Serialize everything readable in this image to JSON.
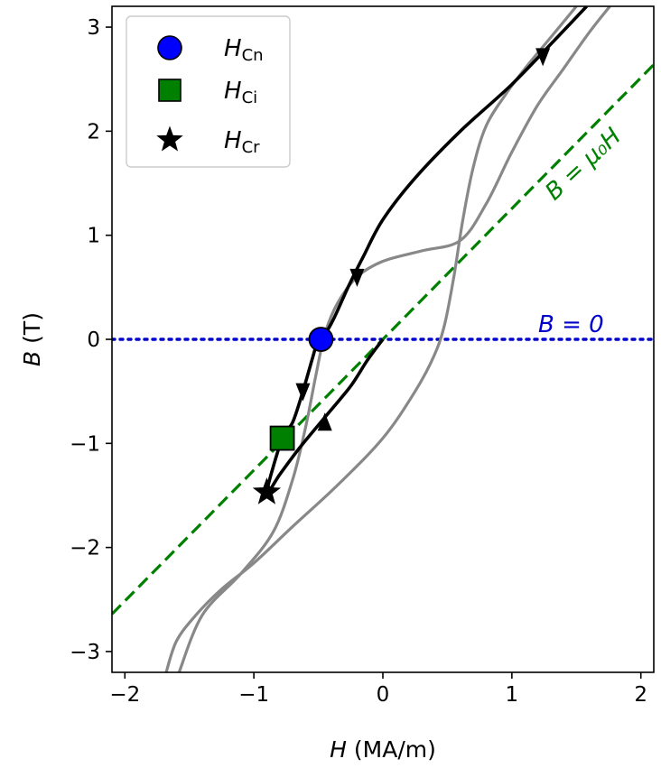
{
  "chart_data": {
    "type": "line",
    "xlabel": {
      "var": "H",
      "unit": " (MA/m)"
    },
    "ylabel": {
      "var": "B",
      "unit": " (T)"
    },
    "xlim": [
      -2.1,
      2.1
    ],
    "ylim": [
      -3.2,
      3.2
    ],
    "xticks": [
      -2,
      -1,
      0,
      1,
      2
    ],
    "yticks": [
      -3,
      -2,
      -1,
      0,
      1,
      2,
      3
    ],
    "xtick_labels": [
      "−2",
      "−1",
      "0",
      "1",
      "2"
    ],
    "ytick_labels": [
      "−3",
      "−2",
      "−1",
      "0",
      "1",
      "2",
      "3"
    ],
    "grid": false,
    "legend_position": "top-left",
    "colors": {
      "hysteresis_loop": "#888888",
      "recoil_path": "#000000",
      "mu0_line": "#008000",
      "b_zero_line": "#0000cc",
      "marker_hcn": "#0000ff",
      "marker_hci": "#008000",
      "marker_hcr": "#000000"
    },
    "hysteresis_loop": [
      {
        "x": [
          -1.68,
          -1.6,
          -1.45,
          -1.25,
          -1.0,
          -0.7,
          -0.35,
          0.0,
          0.25,
          0.4,
          0.48,
          0.55,
          0.62,
          0.7,
          0.8,
          0.95,
          1.1,
          1.3,
          1.5
        ],
        "y": [
          -3.2,
          -2.9,
          -2.65,
          -2.4,
          -2.15,
          -1.8,
          -1.4,
          -0.95,
          -0.5,
          -0.15,
          0.15,
          0.6,
          1.15,
          1.65,
          2.05,
          2.35,
          2.6,
          2.9,
          3.2
        ]
      },
      {
        "x": [
          -1.58,
          -1.4,
          -1.1,
          -0.85,
          -0.7,
          -0.6,
          -0.52,
          -0.45,
          -0.35,
          -0.2,
          0.0,
          0.3,
          0.6,
          0.8,
          1.0,
          1.2,
          1.4,
          1.6,
          1.76
        ],
        "y": [
          -3.2,
          -2.65,
          -2.25,
          -1.85,
          -1.35,
          -0.85,
          -0.35,
          0.05,
          0.35,
          0.6,
          0.75,
          0.85,
          0.95,
          1.3,
          1.8,
          2.25,
          2.6,
          2.95,
          3.2
        ]
      }
    ],
    "recoil_path": {
      "x": [
        1.58,
        1.35,
        1.0,
        0.6,
        0.25,
        0.0,
        -0.15,
        -0.27,
        -0.38,
        -0.45,
        -0.5,
        -0.55,
        -0.62,
        -0.7,
        -0.78,
        -0.9,
        -0.8,
        -0.65,
        -0.45,
        -0.25,
        -0.12,
        0.0
      ],
      "y": [
        3.2,
        2.9,
        2.45,
        2.0,
        1.55,
        1.15,
        0.8,
        0.5,
        0.2,
        0.05,
        0.0,
        -0.2,
        -0.5,
        -0.8,
        -0.95,
        -1.47,
        -1.3,
        -1.05,
        -0.75,
        -0.45,
        -0.2,
        0.0
      ]
    },
    "arrows": [
      {
        "x": 1.24,
        "y": 2.72,
        "dir": "down"
      },
      {
        "x": -0.2,
        "y": 0.6,
        "dir": "down"
      },
      {
        "x": -0.62,
        "y": -0.5,
        "dir": "down"
      },
      {
        "x": -0.45,
        "y": -0.8,
        "dir": "up"
      }
    ],
    "mu0_line": {
      "x": [
        -2.1,
        2.1
      ],
      "y": [
        -2.64,
        2.64
      ]
    },
    "b_zero_line": {
      "x": [
        -2.1,
        2.1
      ],
      "y": [
        0,
        0
      ]
    },
    "markers": [
      {
        "key": "Hcn",
        "x": -0.48,
        "y": 0.0,
        "shape": "circle"
      },
      {
        "key": "Hci",
        "x": -0.78,
        "y": -0.95,
        "shape": "square"
      },
      {
        "key": "Hcr",
        "x": -0.9,
        "y": -1.47,
        "shape": "star"
      }
    ],
    "legend": [
      {
        "main": "H",
        "sub": "Cn",
        "shape": "circle"
      },
      {
        "main": "H",
        "sub": "Ci",
        "shape": "square"
      },
      {
        "main": "H",
        "sub": "Cr",
        "shape": "star"
      }
    ],
    "annotations": {
      "b_zero": "B = 0",
      "mu0": "B = μ₀H"
    }
  }
}
